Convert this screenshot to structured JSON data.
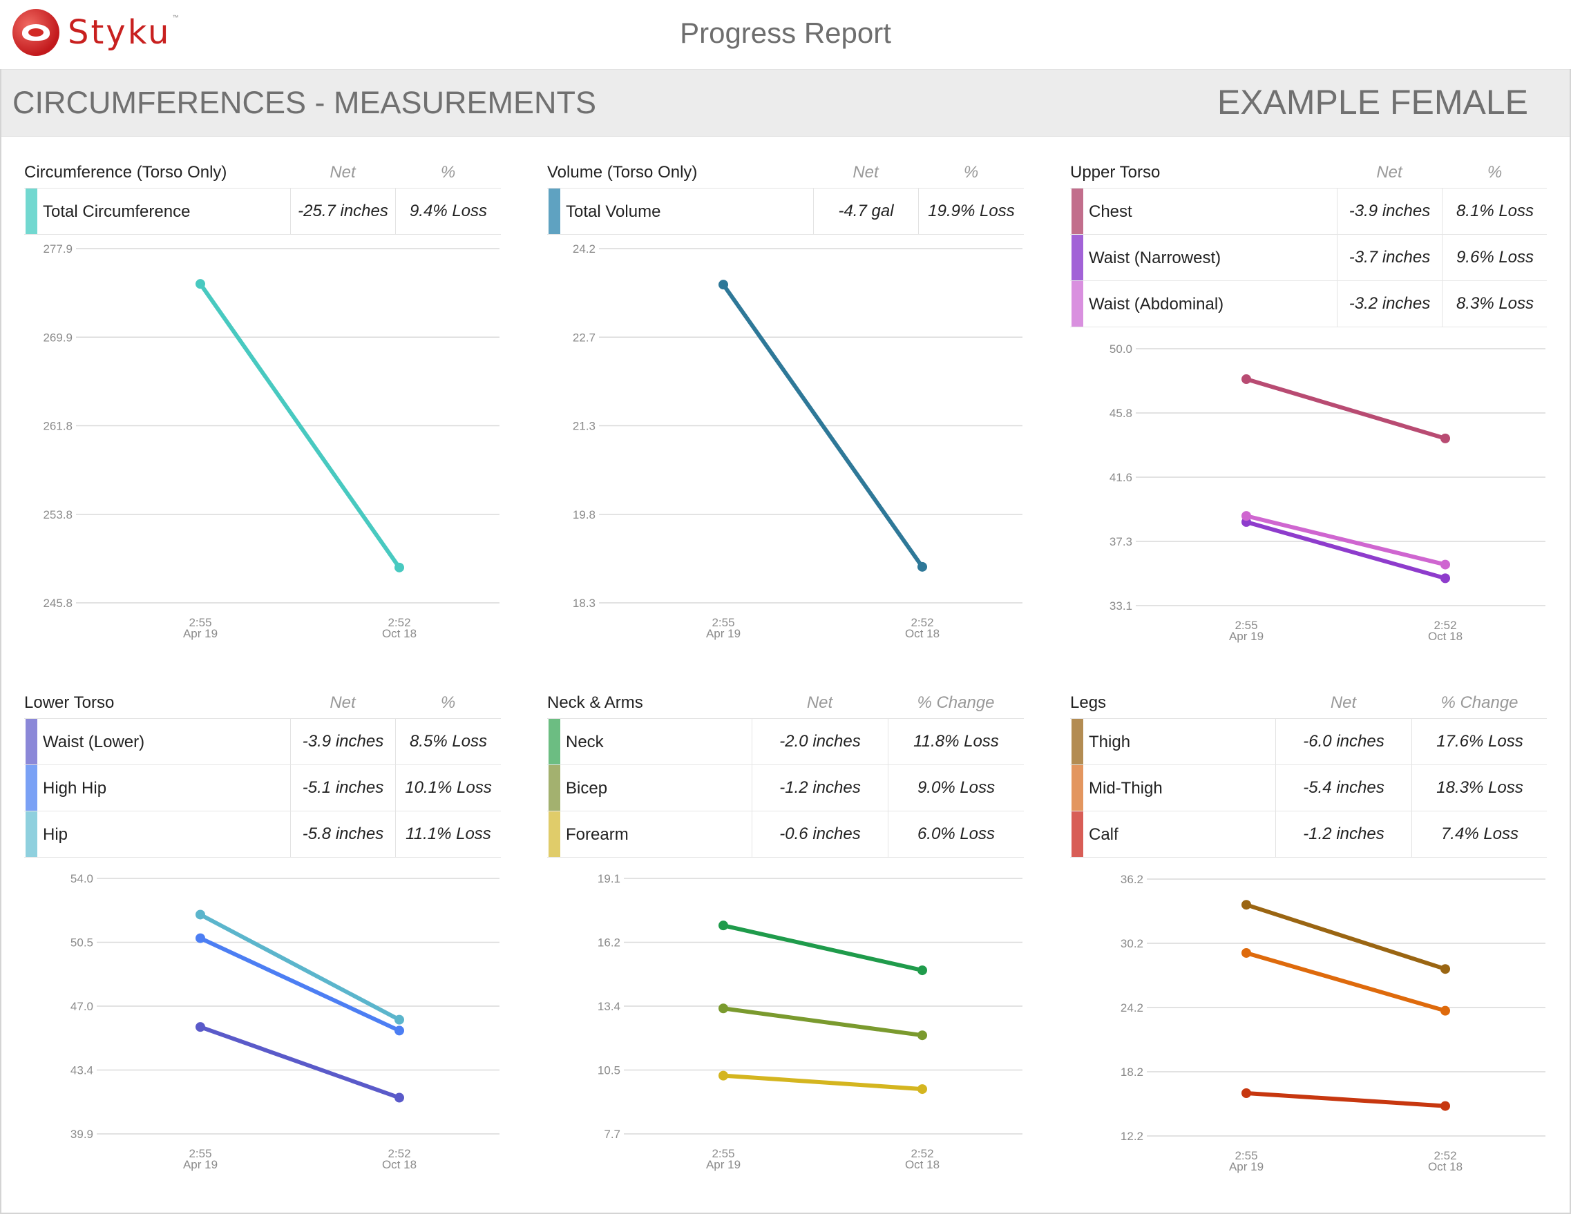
{
  "header": {
    "brand": "Styku",
    "trademark": "™",
    "title": "Progress Report"
  },
  "banner": {
    "section": "CIRCUMFERENCES - MEASUREMENTS",
    "client": "EXAMPLE FEMALE"
  },
  "panels": [
    {
      "title": "Circumference (Torso Only)",
      "col_net": "Net",
      "col_pct": "%",
      "rows": [
        {
          "name": "Total Circumference",
          "net": "-25.7 inches",
          "pct": "9.4% Loss",
          "color": "#72d8d0"
        }
      ]
    },
    {
      "title": "Volume (Torso Only)",
      "col_net": "Net",
      "col_pct": "%",
      "rows": [
        {
          "name": "Total Volume",
          "net": "-4.7 gal",
          "pct": "19.9% Loss",
          "color": "#5fa2c1"
        }
      ]
    },
    {
      "title": "Upper Torso",
      "col_net": "Net",
      "col_pct": "%",
      "rows": [
        {
          "name": "Chest",
          "net": "-3.9 inches",
          "pct": "8.1% Loss",
          "color": "#c26e8c"
        },
        {
          "name": "Waist (Narrowest)",
          "net": "-3.7 inches",
          "pct": "9.6% Loss",
          "color": "#a262d7"
        },
        {
          "name": "Waist (Abdominal)",
          "net": "-3.2 inches",
          "pct": "8.3% Loss",
          "color": "#d990df"
        }
      ]
    },
    {
      "title": "Lower Torso",
      "col_net": "Net",
      "col_pct": "%",
      "rows": [
        {
          "name": "Waist (Lower)",
          "net": "-3.9 inches",
          "pct": "8.5% Loss",
          "color": "#8b88d8"
        },
        {
          "name": "High Hip",
          "net": "-5.1 inches",
          "pct": "10.1% Loss",
          "color": "#7aa1f5"
        },
        {
          "name": "Hip",
          "net": "-5.8 inches",
          "pct": "11.1% Loss",
          "color": "#8fd0de"
        }
      ]
    },
    {
      "title": "Neck & Arms",
      "col_net": "Net",
      "col_pct": "% Change",
      "rows": [
        {
          "name": "Neck",
          "net": "-2.0 inches",
          "pct": "11.8% Loss",
          "color": "#6cbd82"
        },
        {
          "name": "Bicep",
          "net": "-1.2 inches",
          "pct": "9.0% Loss",
          "color": "#a3b16f"
        },
        {
          "name": "Forearm",
          "net": "-0.6 inches",
          "pct": "6.0% Loss",
          "color": "#e0cc6a"
        }
      ]
    },
    {
      "title": "Legs",
      "col_net": "Net",
      "col_pct": "% Change",
      "rows": [
        {
          "name": "Thigh",
          "net": "-6.0 inches",
          "pct": "17.6% Loss",
          "color": "#b38c52"
        },
        {
          "name": "Mid-Thigh",
          "net": "-5.4 inches",
          "pct": "18.3% Loss",
          "color": "#e3965f"
        },
        {
          "name": "Calf",
          "net": "-1.2 inches",
          "pct": "7.4% Loss",
          "color": "#d85d56"
        }
      ]
    }
  ],
  "chart_data": [
    {
      "type": "line",
      "x": [
        "2:55 Apr 19",
        "2:52 Oct 18"
      ],
      "x_time": [
        "2:55",
        "2:52"
      ],
      "x_date": [
        "Apr 19",
        "Oct 18"
      ],
      "yticks": [
        "277.9",
        "269.9",
        "261.8",
        "253.8",
        "245.8"
      ],
      "ylim": [
        245.8,
        277.9
      ],
      "grid": true,
      "series": [
        {
          "name": "Total Circumference",
          "color": "#48c9c0",
          "values": [
            274.7,
            249.0
          ]
        }
      ]
    },
    {
      "type": "line",
      "x": [
        "2:55 Apr 19",
        "2:52 Oct 18"
      ],
      "x_time": [
        "2:55",
        "2:52"
      ],
      "x_date": [
        "Apr 19",
        "Oct 18"
      ],
      "yticks": [
        "24.2",
        "22.7",
        "21.3",
        "19.8",
        "18.3"
      ],
      "ylim": [
        18.3,
        24.2
      ],
      "grid": true,
      "series": [
        {
          "name": "Total Volume",
          "color": "#2e7898",
          "values": [
            23.6,
            18.9
          ]
        }
      ]
    },
    {
      "type": "line",
      "x": [
        "2:55 Apr 19",
        "2:52 Oct 18"
      ],
      "x_time": [
        "2:55",
        "2:52"
      ],
      "x_date": [
        "Apr 19",
        "Oct 18"
      ],
      "yticks": [
        "50.0",
        "45.8",
        "41.6",
        "37.3",
        "33.1"
      ],
      "ylim": [
        33.1,
        50.0
      ],
      "grid": true,
      "series": [
        {
          "name": "Chest",
          "color": "#b84b72",
          "values": [
            48.0,
            44.1
          ]
        },
        {
          "name": "Waist (Narrowest)",
          "color": "#8e3ccc",
          "values": [
            38.6,
            34.9
          ]
        },
        {
          "name": "Waist (Abdominal)",
          "color": "#cf66d0",
          "values": [
            39.0,
            35.8
          ]
        }
      ]
    },
    {
      "type": "line",
      "x": [
        "2:55 Apr 19",
        "2:52 Oct 18"
      ],
      "x_time": [
        "2:55",
        "2:52"
      ],
      "x_date": [
        "Apr 19",
        "Oct 18"
      ],
      "yticks": [
        "54.0",
        "50.5",
        "47.0",
        "43.4",
        "39.9"
      ],
      "ylim": [
        39.9,
        54.0
      ],
      "grid": true,
      "series": [
        {
          "name": "Waist (Lower)",
          "color": "#5a5ac9",
          "values": [
            45.8,
            41.9
          ]
        },
        {
          "name": "High Hip",
          "color": "#4c7ef3",
          "values": [
            50.7,
            45.6
          ]
        },
        {
          "name": "Hip",
          "color": "#5bb5cc",
          "values": [
            52.0,
            46.2
          ]
        }
      ]
    },
    {
      "type": "line",
      "x": [
        "2:55 Apr 19",
        "2:52 Oct 18"
      ],
      "x_time": [
        "2:55",
        "2:52"
      ],
      "x_date": [
        "Apr 19",
        "Oct 18"
      ],
      "yticks": [
        "19.1",
        "16.2",
        "13.4",
        "10.5",
        "7.7"
      ],
      "ylim": [
        7.7,
        19.1
      ],
      "grid": true,
      "series": [
        {
          "name": "Neck",
          "color": "#1f9b4b",
          "values": [
            17.0,
            15.0
          ]
        },
        {
          "name": "Bicep",
          "color": "#7a9a2e",
          "values": [
            13.3,
            12.1
          ]
        },
        {
          "name": "Forearm",
          "color": "#d4b51f",
          "values": [
            10.3,
            9.7
          ]
        }
      ]
    },
    {
      "type": "line",
      "x": [
        "2:55 Apr 19",
        "2:52 Oct 18"
      ],
      "x_time": [
        "2:55",
        "2:52"
      ],
      "x_date": [
        "Apr 19",
        "Oct 18"
      ],
      "yticks": [
        "36.2",
        "30.2",
        "24.2",
        "18.2",
        "12.2"
      ],
      "ylim": [
        12.2,
        36.2
      ],
      "grid": true,
      "series": [
        {
          "name": "Thigh",
          "color": "#9a6512",
          "values": [
            33.8,
            27.8
          ]
        },
        {
          "name": "Mid-Thigh",
          "color": "#de6a0c",
          "values": [
            29.3,
            23.9
          ]
        },
        {
          "name": "Calf",
          "color": "#c7370f",
          "values": [
            16.2,
            15.0
          ]
        }
      ]
    }
  ]
}
